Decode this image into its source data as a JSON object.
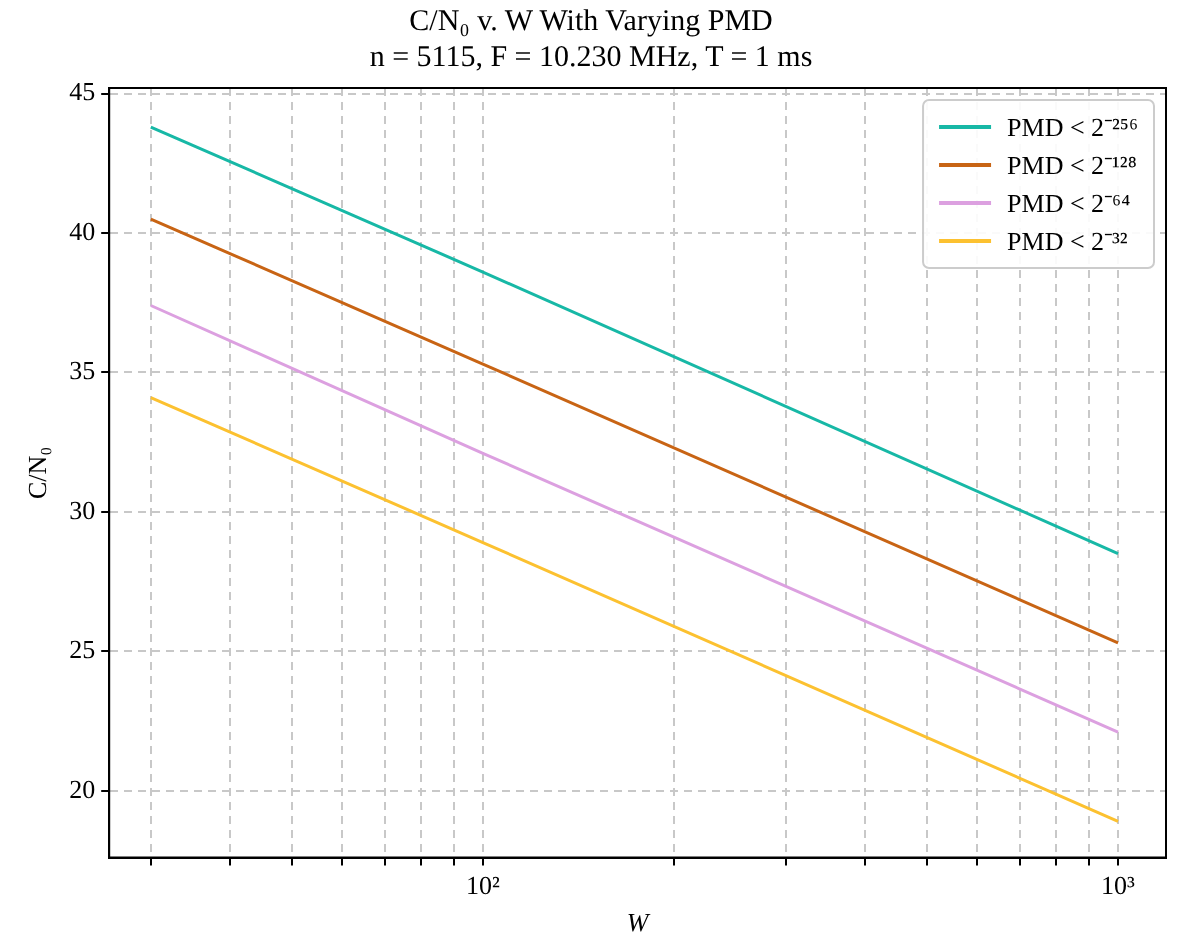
{
  "chart_data": {
    "type": "line",
    "title": "C/N₀ v. W With Varying PMD",
    "subtitle": "n = 5115, F = 10.230 MHz, T = 1 ms",
    "xlabel": "W",
    "ylabel": "C/N₀",
    "x": [
      30,
      100,
      1000
    ],
    "series": [
      {
        "name": "PMD < 2⁻²⁵⁶",
        "color": "#17b8a6",
        "values": [
          43.8,
          38.6,
          28.5
        ]
      },
      {
        "name": "PMD < 2⁻¹²⁸",
        "color": "#c86414",
        "values": [
          40.5,
          35.3,
          25.3
        ]
      },
      {
        "name": "PMD < 2⁻⁶⁴",
        "color": "#dca0e0",
        "values": [
          37.4,
          32.1,
          22.1
        ]
      },
      {
        "name": "PMD < 2⁻³²",
        "color": "#fcc130",
        "values": [
          34.1,
          28.9,
          18.9
        ]
      }
    ],
    "log": "x",
    "xlim": [
      25.8,
      1190
    ],
    "xticks": [
      {
        "value": 30,
        "label": null
      },
      {
        "value": 40,
        "label": null
      },
      {
        "value": 50,
        "label": null
      },
      {
        "value": 60,
        "label": null
      },
      {
        "value": 70,
        "label": null
      },
      {
        "value": 80,
        "label": null
      },
      {
        "value": 90,
        "label": null
      },
      {
        "value": 100,
        "label": "10²"
      },
      {
        "value": 200,
        "label": null
      },
      {
        "value": 300,
        "label": null
      },
      {
        "value": 400,
        "label": null
      },
      {
        "value": 500,
        "label": null
      },
      {
        "value": 600,
        "label": null
      },
      {
        "value": 700,
        "label": null
      },
      {
        "value": 800,
        "label": null
      },
      {
        "value": 900,
        "label": null
      },
      {
        "value": 1000,
        "label": "10³"
      }
    ],
    "ylim": [
      17.6,
      45.2
    ],
    "yticks": [
      20,
      25,
      30,
      35,
      40,
      45
    ],
    "grid": true,
    "legend": "top right",
    "marker": "none",
    "line_style": "solid"
  }
}
